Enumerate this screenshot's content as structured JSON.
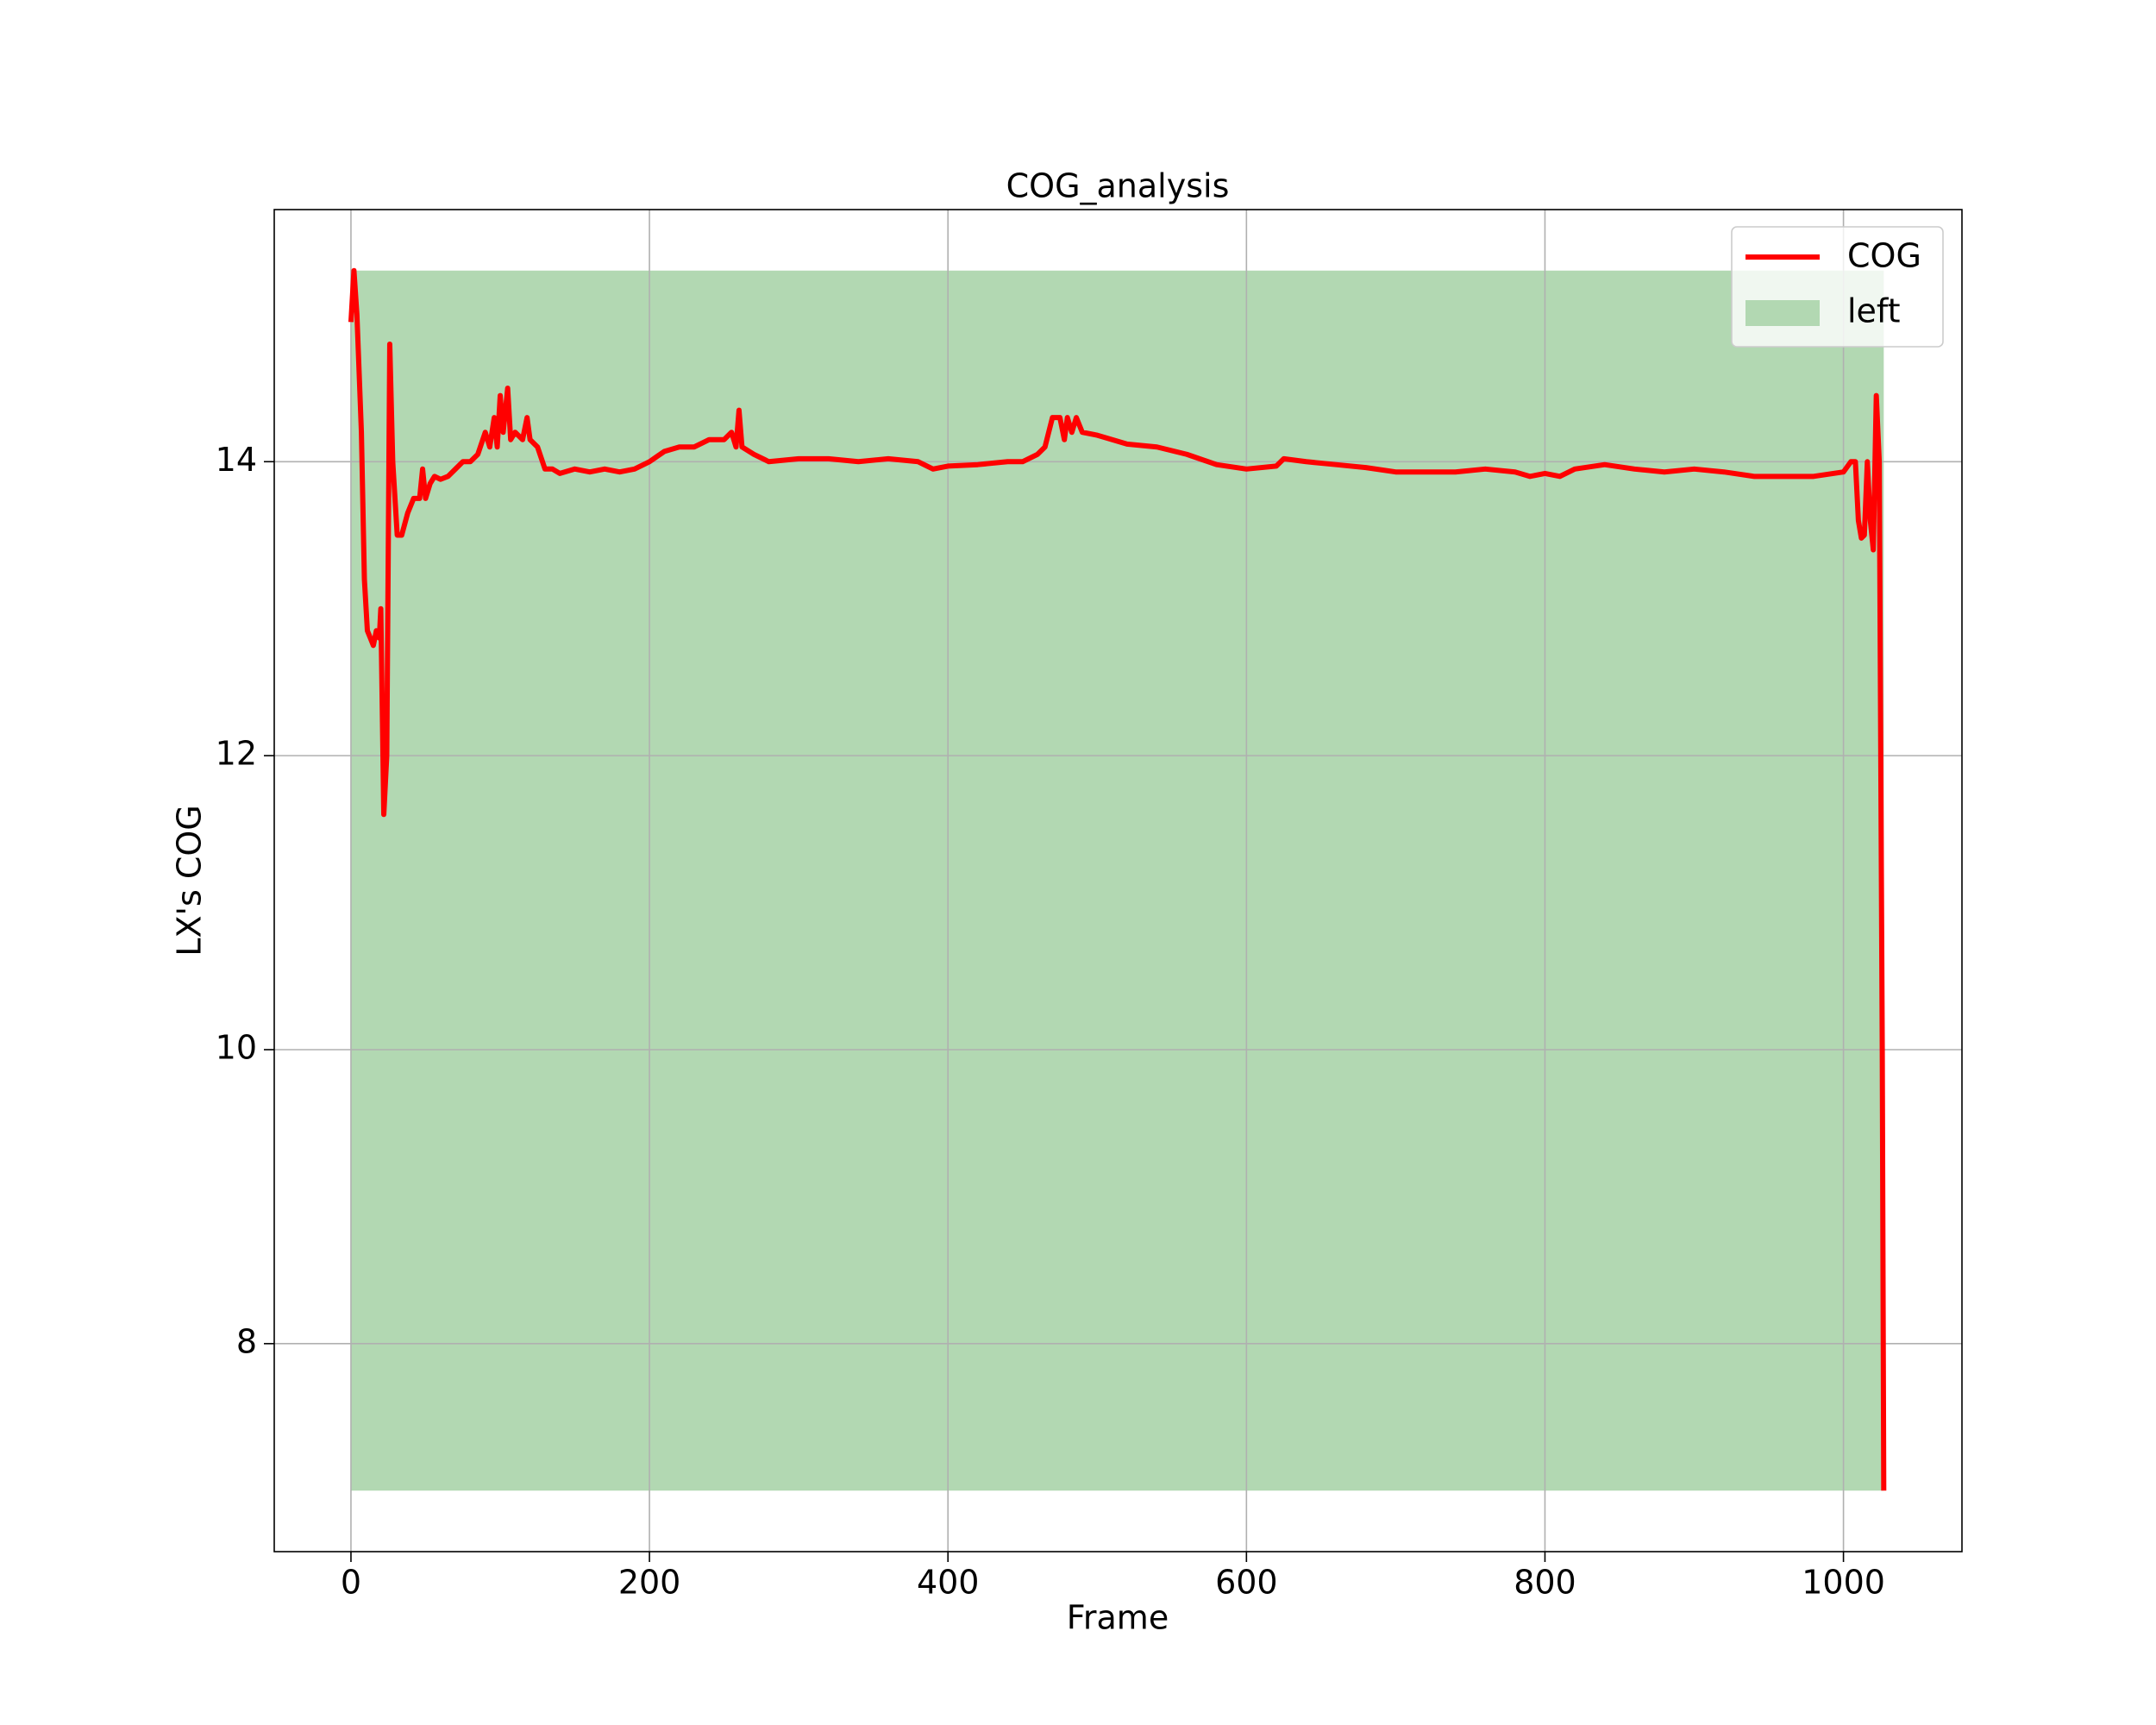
{
  "chart_data": {
    "type": "line",
    "title": "COG_analysis",
    "x_label": "Frame",
    "y_label": "LX's COG",
    "xlim": [
      -51.4,
      1079.4
    ],
    "ylim": [
      6.585,
      15.715
    ],
    "xticks": [
      0,
      200,
      400,
      600,
      800,
      1000
    ],
    "yticks": [
      8,
      10,
      12,
      14
    ],
    "grid": true,
    "legend": "upper right",
    "fill": {
      "name": "left",
      "color": "#b2d8b2",
      "xrange": [
        0,
        1027
      ],
      "yrange": [
        7.0,
        15.3
      ]
    },
    "series": [
      {
        "name": "COG",
        "color": "#ff0000",
        "x": [
          0,
          2,
          4,
          7,
          9,
          11,
          13,
          15,
          17,
          19,
          20,
          22,
          24,
          26,
          28,
          31,
          34,
          38,
          42,
          46,
          48,
          50,
          53,
          56,
          60,
          65,
          70,
          75,
          80,
          85,
          90,
          93,
          96,
          98,
          100,
          102,
          105,
          107,
          110,
          115,
          118,
          120,
          125,
          130,
          135,
          140,
          150,
          160,
          170,
          180,
          190,
          200,
          210,
          220,
          230,
          240,
          250,
          255,
          258,
          260,
          262,
          270,
          280,
          300,
          320,
          340,
          360,
          380,
          390,
          400,
          420,
          440,
          450,
          460,
          465,
          470,
          475,
          478,
          480,
          483,
          486,
          490,
          500,
          520,
          540,
          560,
          580,
          600,
          620,
          625,
          640,
          660,
          680,
          700,
          720,
          740,
          760,
          780,
          790,
          800,
          810,
          820,
          840,
          860,
          880,
          900,
          920,
          940,
          960,
          980,
          1000,
          1005,
          1008,
          1010,
          1012,
          1014,
          1016,
          1018,
          1020,
          1022,
          1024,
          1026,
          1027
        ],
        "values": [
          14.95,
          15.3,
          15.0,
          14.2,
          13.2,
          12.85,
          12.8,
          12.75,
          12.85,
          12.8,
          13.0,
          11.6,
          12.0,
          14.8,
          14.0,
          13.5,
          13.5,
          13.65,
          13.75,
          13.75,
          13.95,
          13.75,
          13.85,
          13.9,
          13.88,
          13.9,
          13.95,
          14.0,
          14.0,
          14.05,
          14.2,
          14.1,
          14.3,
          14.1,
          14.45,
          14.2,
          14.5,
          14.15,
          14.2,
          14.15,
          14.3,
          14.15,
          14.1,
          13.95,
          13.95,
          13.92,
          13.95,
          13.93,
          13.95,
          13.93,
          13.95,
          14.0,
          14.07,
          14.1,
          14.1,
          14.15,
          14.15,
          14.2,
          14.1,
          14.35,
          14.1,
          14.05,
          14.0,
          14.02,
          14.02,
          14.0,
          14.02,
          14.0,
          13.95,
          13.97,
          13.98,
          14.0,
          14.0,
          14.05,
          14.1,
          14.3,
          14.3,
          14.15,
          14.3,
          14.2,
          14.3,
          14.2,
          14.18,
          14.12,
          14.1,
          14.05,
          13.98,
          13.95,
          13.97,
          14.02,
          14.0,
          13.98,
          13.96,
          13.93,
          13.93,
          13.93,
          13.95,
          13.93,
          13.9,
          13.92,
          13.9,
          13.95,
          13.98,
          13.95,
          13.93,
          13.95,
          13.93,
          13.9,
          13.9,
          13.9,
          13.93,
          14.0,
          14.0,
          13.6,
          13.48,
          13.5,
          14.0,
          13.6,
          13.4,
          14.45,
          14.0,
          10.0,
          7.0
        ]
      }
    ]
  }
}
